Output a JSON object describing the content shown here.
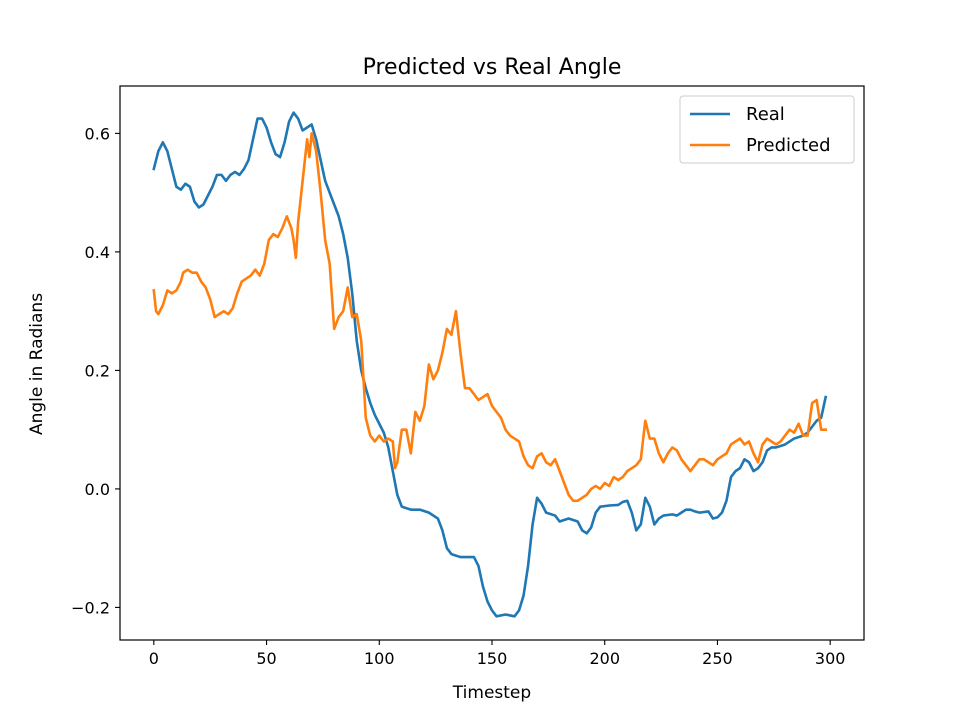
{
  "chart_data": {
    "type": "line",
    "title": "Predicted vs Real Angle",
    "xlabel": "Timestep",
    "ylabel": "Angle in Radians",
    "xlim": [
      -15,
      315
    ],
    "ylim": [
      -0.255,
      0.68
    ],
    "xticks": [
      0,
      50,
      100,
      150,
      200,
      250,
      300
    ],
    "xtick_labels": [
      "0",
      "50",
      "100",
      "150",
      "200",
      "250",
      "300"
    ],
    "yticks": [
      -0.2,
      0.0,
      0.2,
      0.4,
      0.6
    ],
    "ytick_labels": [
      "−0.2",
      "0.0",
      "0.2",
      "0.4",
      "0.6"
    ],
    "grid": false,
    "legend_position": "top-right",
    "series": [
      {
        "name": "Real",
        "color": "#1f77b4",
        "points": [
          [
            0,
            0.54
          ],
          [
            2,
            0.57
          ],
          [
            4,
            0.585
          ],
          [
            6,
            0.57
          ],
          [
            8,
            0.54
          ],
          [
            10,
            0.51
          ],
          [
            12,
            0.505
          ],
          [
            14,
            0.515
          ],
          [
            16,
            0.51
          ],
          [
            18,
            0.485
          ],
          [
            20,
            0.475
          ],
          [
            22,
            0.48
          ],
          [
            24,
            0.495
          ],
          [
            26,
            0.51
          ],
          [
            28,
            0.53
          ],
          [
            30,
            0.53
          ],
          [
            32,
            0.52
          ],
          [
            34,
            0.53
          ],
          [
            36,
            0.535
          ],
          [
            38,
            0.53
          ],
          [
            40,
            0.54
          ],
          [
            42,
            0.555
          ],
          [
            44,
            0.59
          ],
          [
            46,
            0.625
          ],
          [
            48,
            0.625
          ],
          [
            50,
            0.61
          ],
          [
            52,
            0.585
          ],
          [
            54,
            0.565
          ],
          [
            56,
            0.56
          ],
          [
            58,
            0.585
          ],
          [
            60,
            0.62
          ],
          [
            62,
            0.635
          ],
          [
            64,
            0.625
          ],
          [
            66,
            0.605
          ],
          [
            68,
            0.61
          ],
          [
            70,
            0.615
          ],
          [
            72,
            0.59
          ],
          [
            74,
            0.555
          ],
          [
            76,
            0.52
          ],
          [
            78,
            0.5
          ],
          [
            80,
            0.48
          ],
          [
            82,
            0.46
          ],
          [
            84,
            0.43
          ],
          [
            86,
            0.39
          ],
          [
            88,
            0.33
          ],
          [
            90,
            0.25
          ],
          [
            92,
            0.2
          ],
          [
            94,
            0.17
          ],
          [
            96,
            0.145
          ],
          [
            98,
            0.125
          ],
          [
            100,
            0.11
          ],
          [
            102,
            0.095
          ],
          [
            104,
            0.07
          ],
          [
            106,
            0.03
          ],
          [
            108,
            -0.01
          ],
          [
            110,
            -0.03
          ],
          [
            114,
            -0.035
          ],
          [
            118,
            -0.035
          ],
          [
            122,
            -0.04
          ],
          [
            126,
            -0.05
          ],
          [
            128,
            -0.07
          ],
          [
            130,
            -0.1
          ],
          [
            132,
            -0.11
          ],
          [
            136,
            -0.115
          ],
          [
            142,
            -0.115
          ],
          [
            144,
            -0.13
          ],
          [
            146,
            -0.165
          ],
          [
            148,
            -0.19
          ],
          [
            150,
            -0.205
          ],
          [
            152,
            -0.215
          ],
          [
            156,
            -0.212
          ],
          [
            160,
            -0.215
          ],
          [
            162,
            -0.205
          ],
          [
            164,
            -0.18
          ],
          [
            166,
            -0.13
          ],
          [
            168,
            -0.06
          ],
          [
            170,
            -0.015
          ],
          [
            172,
            -0.025
          ],
          [
            174,
            -0.04
          ],
          [
            178,
            -0.045
          ],
          [
            180,
            -0.055
          ],
          [
            184,
            -0.05
          ],
          [
            188,
            -0.055
          ],
          [
            190,
            -0.07
          ],
          [
            192,
            -0.075
          ],
          [
            194,
            -0.065
          ],
          [
            196,
            -0.04
          ],
          [
            198,
            -0.03
          ],
          [
            202,
            -0.028
          ],
          [
            206,
            -0.027
          ],
          [
            208,
            -0.022
          ],
          [
            210,
            -0.02
          ],
          [
            212,
            -0.04
          ],
          [
            214,
            -0.07
          ],
          [
            216,
            -0.06
          ],
          [
            218,
            -0.015
          ],
          [
            220,
            -0.03
          ],
          [
            222,
            -0.06
          ],
          [
            224,
            -0.05
          ],
          [
            226,
            -0.045
          ],
          [
            230,
            -0.043
          ],
          [
            232,
            -0.045
          ],
          [
            234,
            -0.04
          ],
          [
            236,
            -0.035
          ],
          [
            238,
            -0.035
          ],
          [
            240,
            -0.038
          ],
          [
            242,
            -0.04
          ],
          [
            246,
            -0.038
          ],
          [
            248,
            -0.05
          ],
          [
            250,
            -0.048
          ],
          [
            252,
            -0.04
          ],
          [
            254,
            -0.02
          ],
          [
            256,
            0.02
          ],
          [
            258,
            0.03
          ],
          [
            260,
            0.035
          ],
          [
            262,
            0.05
          ],
          [
            264,
            0.045
          ],
          [
            266,
            0.03
          ],
          [
            268,
            0.035
          ],
          [
            270,
            0.045
          ],
          [
            272,
            0.065
          ],
          [
            274,
            0.07
          ],
          [
            276,
            0.07
          ],
          [
            280,
            0.075
          ],
          [
            284,
            0.085
          ],
          [
            288,
            0.09
          ],
          [
            290,
            0.095
          ],
          [
            294,
            0.115
          ],
          [
            296,
            0.12
          ],
          [
            298,
            0.155
          ]
        ]
      },
      {
        "name": "Predicted",
        "color": "#ff7f0e",
        "points": [
          [
            0,
            0.335
          ],
          [
            1,
            0.3
          ],
          [
            2,
            0.295
          ],
          [
            4,
            0.31
          ],
          [
            6,
            0.335
          ],
          [
            8,
            0.33
          ],
          [
            10,
            0.335
          ],
          [
            12,
            0.35
          ],
          [
            13,
            0.365
          ],
          [
            15,
            0.37
          ],
          [
            17,
            0.365
          ],
          [
            19,
            0.365
          ],
          [
            21,
            0.35
          ],
          [
            23,
            0.34
          ],
          [
            25,
            0.32
          ],
          [
            27,
            0.29
          ],
          [
            29,
            0.295
          ],
          [
            31,
            0.3
          ],
          [
            33,
            0.295
          ],
          [
            35,
            0.305
          ],
          [
            37,
            0.33
          ],
          [
            39,
            0.35
          ],
          [
            41,
            0.355
          ],
          [
            43,
            0.36
          ],
          [
            45,
            0.37
          ],
          [
            47,
            0.36
          ],
          [
            49,
            0.38
          ],
          [
            51,
            0.42
          ],
          [
            53,
            0.43
          ],
          [
            55,
            0.425
          ],
          [
            57,
            0.44
          ],
          [
            59,
            0.46
          ],
          [
            61,
            0.44
          ],
          [
            62,
            0.42
          ],
          [
            63,
            0.39
          ],
          [
            64,
            0.45
          ],
          [
            66,
            0.52
          ],
          [
            68,
            0.59
          ],
          [
            69,
            0.56
          ],
          [
            70,
            0.6
          ],
          [
            72,
            0.57
          ],
          [
            74,
            0.5
          ],
          [
            75,
            0.46
          ],
          [
            76,
            0.42
          ],
          [
            78,
            0.38
          ],
          [
            80,
            0.27
          ],
          [
            82,
            0.29
          ],
          [
            84,
            0.3
          ],
          [
            86,
            0.34
          ],
          [
            88,
            0.29
          ],
          [
            90,
            0.295
          ],
          [
            92,
            0.25
          ],
          [
            94,
            0.12
          ],
          [
            96,
            0.09
          ],
          [
            98,
            0.08
          ],
          [
            100,
            0.09
          ],
          [
            102,
            0.08
          ],
          [
            104,
            0.085
          ],
          [
            106,
            0.08
          ],
          [
            107,
            0.035
          ],
          [
            108,
            0.045
          ],
          [
            110,
            0.1
          ],
          [
            112,
            0.1
          ],
          [
            114,
            0.06
          ],
          [
            116,
            0.13
          ],
          [
            118,
            0.115
          ],
          [
            120,
            0.14
          ],
          [
            122,
            0.21
          ],
          [
            124,
            0.185
          ],
          [
            126,
            0.2
          ],
          [
            128,
            0.23
          ],
          [
            130,
            0.27
          ],
          [
            132,
            0.26
          ],
          [
            134,
            0.3
          ],
          [
            136,
            0.23
          ],
          [
            138,
            0.17
          ],
          [
            140,
            0.17
          ],
          [
            142,
            0.16
          ],
          [
            144,
            0.15
          ],
          [
            146,
            0.155
          ],
          [
            148,
            0.16
          ],
          [
            150,
            0.14
          ],
          [
            152,
            0.13
          ],
          [
            154,
            0.12
          ],
          [
            156,
            0.1
          ],
          [
            158,
            0.09
          ],
          [
            160,
            0.085
          ],
          [
            162,
            0.08
          ],
          [
            164,
            0.055
          ],
          [
            166,
            0.04
          ],
          [
            168,
            0.035
          ],
          [
            170,
            0.055
          ],
          [
            172,
            0.06
          ],
          [
            174,
            0.045
          ],
          [
            176,
            0.04
          ],
          [
            178,
            0.05
          ],
          [
            180,
            0.03
          ],
          [
            182,
            0.01
          ],
          [
            184,
            -0.01
          ],
          [
            186,
            -0.02
          ],
          [
            188,
            -0.02
          ],
          [
            190,
            -0.015
          ],
          [
            192,
            -0.01
          ],
          [
            194,
            0.0
          ],
          [
            196,
            0.005
          ],
          [
            198,
            0.0
          ],
          [
            200,
            0.01
          ],
          [
            202,
            0.005
          ],
          [
            204,
            0.02
          ],
          [
            206,
            0.015
          ],
          [
            208,
            0.02
          ],
          [
            210,
            0.03
          ],
          [
            212,
            0.035
          ],
          [
            214,
            0.04
          ],
          [
            216,
            0.05
          ],
          [
            218,
            0.115
          ],
          [
            220,
            0.085
          ],
          [
            222,
            0.085
          ],
          [
            224,
            0.06
          ],
          [
            226,
            0.045
          ],
          [
            228,
            0.06
          ],
          [
            230,
            0.07
          ],
          [
            232,
            0.065
          ],
          [
            234,
            0.05
          ],
          [
            236,
            0.04
          ],
          [
            238,
            0.03
          ],
          [
            240,
            0.04
          ],
          [
            242,
            0.05
          ],
          [
            244,
            0.05
          ],
          [
            246,
            0.045
          ],
          [
            248,
            0.04
          ],
          [
            250,
            0.05
          ],
          [
            252,
            0.055
          ],
          [
            254,
            0.06
          ],
          [
            256,
            0.075
          ],
          [
            258,
            0.08
          ],
          [
            260,
            0.085
          ],
          [
            262,
            0.075
          ],
          [
            264,
            0.08
          ],
          [
            266,
            0.06
          ],
          [
            268,
            0.045
          ],
          [
            270,
            0.075
          ],
          [
            272,
            0.085
          ],
          [
            274,
            0.08
          ],
          [
            276,
            0.075
          ],
          [
            278,
            0.08
          ],
          [
            280,
            0.09
          ],
          [
            282,
            0.1
          ],
          [
            284,
            0.095
          ],
          [
            286,
            0.11
          ],
          [
            288,
            0.09
          ],
          [
            290,
            0.09
          ],
          [
            292,
            0.145
          ],
          [
            294,
            0.15
          ],
          [
            296,
            0.1
          ],
          [
            298,
            0.1
          ]
        ]
      }
    ]
  }
}
